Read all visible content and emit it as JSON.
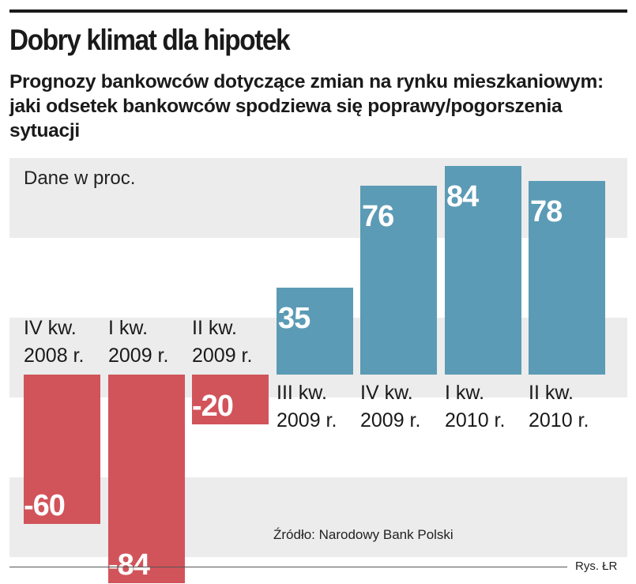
{
  "title": "Dobry klimat dla hipotek",
  "subtitle": "Prognozy bankowców dotyczące zmian na rynku mieszkaniowym: jaki odsetek bankowców spodziewa się poprawy/pogorszenia sytuacji",
  "unit_label": "Dane w proc.",
  "source": "Źródło: Narodowy Bank Polski",
  "credit": "Rys. ŁR",
  "colors": {
    "positive": "#5b9bb5",
    "negative": "#d1545a",
    "band": "#ececec"
  },
  "chart_data": {
    "type": "bar",
    "title": "Dobry klimat dla hipotek",
    "ylabel": "Dane w proc.",
    "ylim": [
      -84,
      84
    ],
    "grid": "alternating horizontal bands",
    "categories": [
      [
        "IV kw.",
        "2008 r."
      ],
      [
        "I kw.",
        "2009 r."
      ],
      [
        "II kw.",
        "2009 r."
      ],
      [
        "III kw.",
        "2009 r."
      ],
      [
        "IV kw.",
        "2009 r."
      ],
      [
        "I kw.",
        "2010 r."
      ],
      [
        "II kw.",
        "2010 r."
      ]
    ],
    "values": [
      -60,
      -84,
      -20,
      35,
      76,
      84,
      78
    ],
    "labels": [
      "-60",
      "-84",
      "-20",
      "35",
      "76",
      "84",
      "78"
    ]
  }
}
